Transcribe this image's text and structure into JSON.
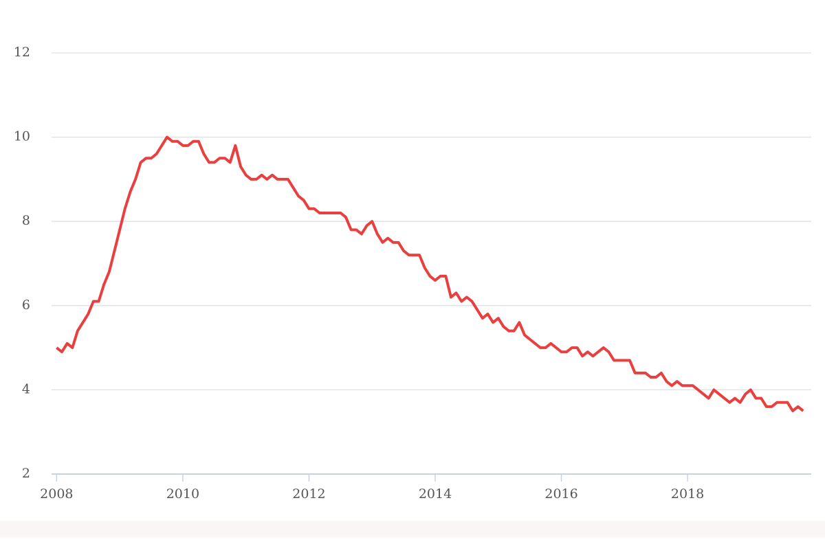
{
  "chart_data": {
    "type": "line",
    "x": [
      2008,
      2008.083,
      2008.167,
      2008.25,
      2008.333,
      2008.417,
      2008.5,
      2008.583,
      2008.667,
      2008.75,
      2008.833,
      2008.917,
      2009,
      2009.083,
      2009.167,
      2009.25,
      2009.333,
      2009.417,
      2009.5,
      2009.583,
      2009.667,
      2009.75,
      2009.833,
      2009.917,
      2010,
      2010.083,
      2010.167,
      2010.25,
      2010.333,
      2010.417,
      2010.5,
      2010.583,
      2010.667,
      2010.75,
      2010.833,
      2010.917,
      2011,
      2011.083,
      2011.167,
      2011.25,
      2011.333,
      2011.417,
      2011.5,
      2011.583,
      2011.667,
      2011.75,
      2011.833,
      2011.917,
      2012,
      2012.083,
      2012.167,
      2012.25,
      2012.333,
      2012.417,
      2012.5,
      2012.583,
      2012.667,
      2012.75,
      2012.833,
      2012.917,
      2013,
      2013.083,
      2013.167,
      2013.25,
      2013.333,
      2013.417,
      2013.5,
      2013.583,
      2013.667,
      2013.75,
      2013.833,
      2013.917,
      2014,
      2014.083,
      2014.167,
      2014.25,
      2014.333,
      2014.417,
      2014.5,
      2014.583,
      2014.667,
      2014.75,
      2014.833,
      2014.917,
      2015,
      2015.083,
      2015.167,
      2015.25,
      2015.333,
      2015.417,
      2015.5,
      2015.583,
      2015.667,
      2015.75,
      2015.833,
      2015.917,
      2016,
      2016.083,
      2016.167,
      2016.25,
      2016.333,
      2016.417,
      2016.5,
      2016.583,
      2016.667,
      2016.75,
      2016.833,
      2016.917,
      2017,
      2017.083,
      2017.167,
      2017.25,
      2017.333,
      2017.417,
      2017.5,
      2017.583,
      2017.667,
      2017.75,
      2017.833,
      2017.917,
      2018,
      2018.083,
      2018.167,
      2018.25,
      2018.333,
      2018.417,
      2018.5,
      2018.583,
      2018.667,
      2018.75,
      2018.833,
      2018.917,
      2019,
      2019.083,
      2019.167,
      2019.25,
      2019.333,
      2019.417,
      2019.5,
      2019.583,
      2019.667,
      2019.75,
      2019.833
    ],
    "series": [
      {
        "color": "#e8403f",
        "values": [
          5.0,
          4.9,
          5.1,
          5.0,
          5.4,
          5.6,
          5.8,
          6.1,
          6.1,
          6.5,
          6.8,
          7.3,
          7.8,
          8.3,
          8.7,
          9.0,
          9.4,
          9.5,
          9.5,
          9.6,
          9.8,
          10.0,
          9.9,
          9.9,
          9.8,
          9.8,
          9.9,
          9.9,
          9.6,
          9.4,
          9.4,
          9.5,
          9.5,
          9.4,
          9.8,
          9.3,
          9.1,
          9.0,
          9.0,
          9.1,
          9.0,
          9.1,
          9.0,
          9.0,
          9.0,
          8.8,
          8.6,
          8.5,
          8.3,
          8.3,
          8.2,
          8.2,
          8.2,
          8.2,
          8.2,
          8.1,
          7.8,
          7.8,
          7.7,
          7.9,
          8.0,
          7.7,
          7.5,
          7.6,
          7.5,
          7.5,
          7.3,
          7.2,
          7.2,
          7.2,
          6.9,
          6.7,
          6.6,
          6.7,
          6.7,
          6.2,
          6.3,
          6.1,
          6.2,
          6.1,
          5.9,
          5.7,
          5.8,
          5.6,
          5.7,
          5.5,
          5.4,
          5.4,
          5.6,
          5.3,
          5.2,
          5.1,
          5.0,
          5.0,
          5.1,
          5.0,
          4.9,
          4.9,
          5.0,
          5.0,
          4.8,
          4.9,
          4.8,
          4.9,
          5.0,
          4.9,
          4.7,
          4.7,
          4.7,
          4.7,
          4.4,
          4.4,
          4.4,
          4.3,
          4.3,
          4.4,
          4.2,
          4.1,
          4.2,
          4.1,
          4.1,
          4.1,
          4.0,
          3.9,
          3.8,
          4.0,
          3.9,
          3.8,
          3.7,
          3.8,
          3.7,
          3.9,
          4.0,
          3.8,
          3.8,
          3.6,
          3.6,
          3.7,
          3.7,
          3.7,
          3.5,
          3.6,
          3.5
        ]
      }
    ],
    "xlim": [
      2007.92,
      2019.96
    ],
    "xticks": [
      2008,
      2010,
      2012,
      2014,
      2016,
      2018
    ],
    "ylim": [
      2,
      12
    ],
    "yticks": [
      2,
      4,
      6,
      8,
      10,
      12
    ],
    "grid": true
  }
}
